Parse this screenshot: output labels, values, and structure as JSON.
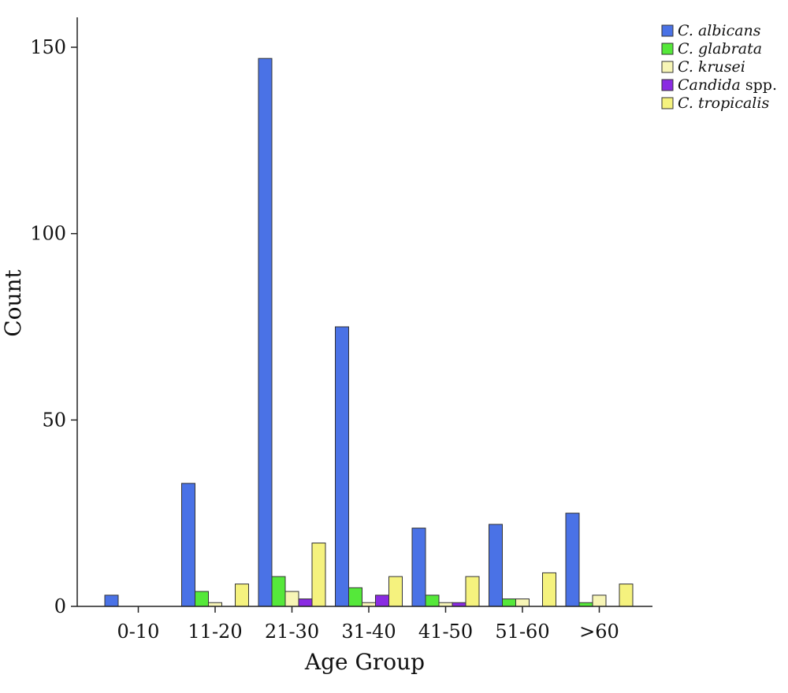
{
  "chart_data": {
    "type": "bar",
    "xlabel": "Age Group",
    "ylabel": "Count",
    "ylim": [
      0,
      160
    ],
    "yticks": [
      0,
      50,
      100,
      150
    ],
    "grid": false,
    "legend_position": "top-right",
    "categories": [
      "0-10",
      "11-20",
      "21-30",
      "31-40",
      "41-50",
      "51-60",
      ">60"
    ],
    "series": [
      {
        "name": "C. albicans",
        "name_italic": "C. albicans",
        "name_suffix": "",
        "color": "#4a72e6",
        "values": [
          3,
          33,
          147,
          75,
          21,
          22,
          25
        ]
      },
      {
        "name": "C. glabrata",
        "name_italic": "C. glabrata",
        "name_suffix": "",
        "color": "#55e83a",
        "values": [
          0,
          4,
          8,
          5,
          3,
          2,
          1
        ]
      },
      {
        "name": "C. krusei",
        "name_italic": "C. krusei",
        "name_suffix": "",
        "color": "#f7f5b6",
        "values": [
          0,
          1,
          4,
          1,
          1,
          2,
          3
        ]
      },
      {
        "name": "Candida spp.",
        "name_italic": "Candida",
        "name_suffix": " spp.",
        "color": "#8a2be2",
        "values": [
          0,
          0,
          2,
          3,
          1,
          0,
          0
        ]
      },
      {
        "name": "C. tropicalis",
        "name_italic": "C. tropicalis",
        "name_suffix": "",
        "color": "#f5f27e",
        "values": [
          0,
          6,
          17,
          8,
          8,
          9,
          6
        ]
      }
    ]
  }
}
